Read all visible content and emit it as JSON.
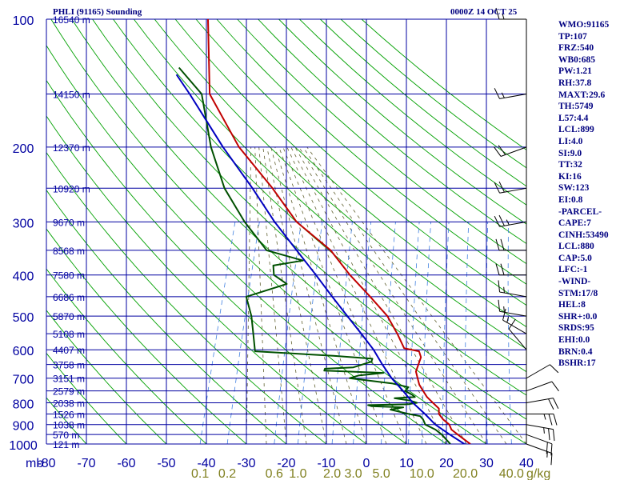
{
  "header": {
    "title": "PHLI (91165) Sounding",
    "datetime": "0000Z 14 OCT 25"
  },
  "indices": [
    "WMO:91165",
    "TP:107",
    "FRZ:540",
    "WB0:685",
    "PW:1.21",
    "RH:37.8",
    "MAXT:29.6",
    "TH:5749",
    "L57:4.4",
    "LCL:899",
    "LI:4.0",
    "SI:9.0",
    "TT:32",
    "KI:16",
    "SW:123",
    "EI:0.8",
    "-PARCEL-",
    "CAPE:7",
    "CINH:53490",
    "LCL:880",
    "CAP:5.0",
    "LFC:-1",
    "-WIND-",
    "STM:17/8",
    "HEL:8",
    "SHR+:0.0",
    "SRDS:95",
    "EHI:0.0",
    "BRN:0.4",
    "BSHR:17"
  ],
  "colors": {
    "grid": "#0000a0",
    "dry_adiabat": "#00a000",
    "temperature": "#c00000",
    "dewpoint": "#005000",
    "parcel": "#0000c0",
    "moist_adiabat": "#606030",
    "mixing_ratio": "#4080e0",
    "axis_label": "#0000a0",
    "mixing_label": "#808020"
  },
  "chart_data": {
    "type": "line",
    "title": "PHLI (91165) Sounding",
    "diagram": "skew-T log-P",
    "pressure_unit": "mb",
    "mixing_ratio_unit": "g/kg",
    "ylim": [
      1000,
      100
    ],
    "xlim": [
      -80,
      40
    ],
    "pressure_levels": [
      100,
      200,
      300,
      400,
      500,
      600,
      700,
      800,
      900,
      1000
    ],
    "temperature_ticks": [
      -80,
      -70,
      -60,
      -50,
      -40,
      -30,
      -20,
      -10,
      0,
      10,
      20,
      30,
      40
    ],
    "x_tick_labels": [
      "-80",
      "-70",
      "-60",
      "-50",
      "-40",
      "-30",
      "-20",
      "-10",
      "0",
      "10",
      "20",
      "30",
      "40"
    ],
    "mixing_ratio_labels": [
      "0.1",
      "0.2",
      "0.6",
      "1.0",
      "2.0",
      "3.0",
      "5.0",
      "10.0",
      "20.0",
      "40.0"
    ],
    "height_labels": [
      {
        "p": 1000,
        "text": "121 m"
      },
      {
        "p": 950,
        "text": "570 m"
      },
      {
        "p": 900,
        "text": "1038 m"
      },
      {
        "p": 850,
        "text": "1526 m"
      },
      {
        "p": 800,
        "text": "2038 m"
      },
      {
        "p": 750,
        "text": "2579 m"
      },
      {
        "p": 700,
        "text": "3151 m"
      },
      {
        "p": 650,
        "text": "3758 m"
      },
      {
        "p": 600,
        "text": "4407 m"
      },
      {
        "p": 550,
        "text": "5108 m"
      },
      {
        "p": 500,
        "text": "5870 m"
      },
      {
        "p": 450,
        "text": "6686 m"
      },
      {
        "p": 400,
        "text": "7580 m"
      },
      {
        "p": 350,
        "text": "8568 m"
      },
      {
        "p": 300,
        "text": "9670 m"
      },
      {
        "p": 250,
        "text": "10920 m"
      },
      {
        "p": 200,
        "text": "12370 m"
      },
      {
        "p": 150,
        "text": "14150 m"
      },
      {
        "p": 100,
        "text": "16540 m"
      }
    ],
    "series": [
      {
        "key": "temperature",
        "points": [
          [
            1000,
            26
          ],
          [
            975,
            24
          ],
          [
            950,
            22
          ],
          [
            925,
            20
          ],
          [
            900,
            19
          ],
          [
            875,
            17
          ],
          [
            850,
            15.5
          ],
          [
            825,
            15
          ],
          [
            800,
            13
          ],
          [
            775,
            11
          ],
          [
            750,
            9.5
          ],
          [
            725,
            8
          ],
          [
            700,
            7
          ],
          [
            675,
            6
          ],
          [
            650,
            6
          ],
          [
            625,
            6
          ],
          [
            605,
            5
          ],
          [
            595,
            1
          ],
          [
            550,
            -2
          ],
          [
            500,
            -6
          ],
          [
            450,
            -12
          ],
          [
            400,
            -19
          ],
          [
            350,
            -26
          ],
          [
            300,
            -37
          ],
          [
            250,
            -46
          ],
          [
            200,
            -58
          ],
          [
            150,
            -70
          ],
          [
            100,
            -77
          ]
        ]
      },
      {
        "key": "dewpoint",
        "points": [
          [
            1000,
            21
          ],
          [
            975,
            19.5
          ],
          [
            950,
            18
          ],
          [
            925,
            16
          ],
          [
            900,
            13
          ],
          [
            875,
            12
          ],
          [
            860,
            11
          ],
          [
            850,
            8
          ],
          [
            830,
            3
          ],
          [
            820,
            6
          ],
          [
            815,
            -2
          ],
          [
            810,
            -3
          ],
          [
            806,
            7
          ],
          [
            800,
            9
          ],
          [
            790,
            7
          ],
          [
            780,
            3
          ],
          [
            775,
            8
          ],
          [
            765,
            7
          ],
          [
            750,
            5
          ],
          [
            735,
            5.5
          ],
          [
            720,
            1
          ],
          [
            700,
            -10
          ],
          [
            690,
            -8
          ],
          [
            680,
            -2
          ],
          [
            672,
            -17
          ],
          [
            665,
            -17
          ],
          [
            660,
            -10
          ],
          [
            640,
            -6
          ],
          [
            630,
            -6
          ],
          [
            620,
            -16
          ],
          [
            605,
            -36
          ],
          [
            550,
            -38
          ],
          [
            500,
            -40
          ],
          [
            450,
            -43
          ],
          [
            420,
            -34
          ],
          [
            400,
            -38
          ],
          [
            380,
            -39
          ],
          [
            370,
            -32
          ],
          [
            350,
            -42
          ],
          [
            300,
            -50
          ],
          [
            250,
            -58
          ],
          [
            200,
            -65
          ],
          [
            150,
            -72
          ],
          [
            130,
            -80
          ]
        ]
      },
      {
        "key": "parcel",
        "points": [
          [
            1000,
            24.5
          ],
          [
            950,
            20
          ],
          [
            900,
            15.5
          ],
          [
            850,
            12
          ],
          [
            800,
            8
          ],
          [
            750,
            4.5
          ],
          [
            700,
            0.5
          ],
          [
            650,
            -3
          ],
          [
            600,
            -6.5
          ],
          [
            550,
            -11
          ],
          [
            500,
            -16
          ],
          [
            450,
            -21.5
          ],
          [
            400,
            -27.5
          ],
          [
            350,
            -34.5
          ],
          [
            300,
            -42.5
          ],
          [
            250,
            -51
          ],
          [
            200,
            -62
          ],
          [
            150,
            -75
          ],
          [
            135,
            -80
          ]
        ]
      }
    ],
    "wind_barbs": [
      {
        "p": 1000,
        "dir": 110,
        "spd": 15
      },
      {
        "p": 950,
        "dir": 110,
        "spd": 20
      },
      {
        "p": 900,
        "dir": 100,
        "spd": 25
      },
      {
        "p": 850,
        "dir": 90,
        "spd": 25
      },
      {
        "p": 800,
        "dir": 80,
        "spd": 20
      },
      {
        "p": 750,
        "dir": 70,
        "spd": 10
      },
      {
        "p": 700,
        "dir": 60,
        "spd": 10
      },
      {
        "p": 600,
        "dir": 320,
        "spd": 10
      },
      {
        "p": 550,
        "dir": 300,
        "spd": 15
      },
      {
        "p": 500,
        "dir": 280,
        "spd": 15
      },
      {
        "p": 450,
        "dir": 280,
        "spd": 15
      },
      {
        "p": 400,
        "dir": 270,
        "spd": 20
      },
      {
        "p": 350,
        "dir": 270,
        "spd": 20
      },
      {
        "p": 300,
        "dir": 260,
        "spd": 25
      },
      {
        "p": 250,
        "dir": 260,
        "spd": 20
      },
      {
        "p": 200,
        "dir": 250,
        "spd": 20
      },
      {
        "p": 150,
        "dir": 260,
        "spd": 15
      },
      {
        "p": 100,
        "dir": 270,
        "spd": 15
      }
    ],
    "grid": true
  }
}
